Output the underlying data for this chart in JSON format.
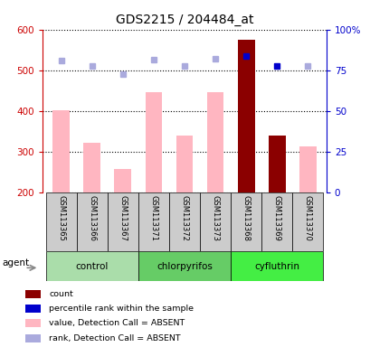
{
  "title": "GDS2215 / 204484_at",
  "samples": [
    "GSM113365",
    "GSM113366",
    "GSM113367",
    "GSM113371",
    "GSM113372",
    "GSM113373",
    "GSM113368",
    "GSM113369",
    "GSM113370"
  ],
  "groups": [
    {
      "label": "control",
      "color": "#AADDAA",
      "indices": [
        0,
        1,
        2
      ]
    },
    {
      "label": "chlorpyrifos",
      "color": "#66CC66",
      "indices": [
        3,
        4,
        5
      ]
    },
    {
      "label": "cyfluthrin",
      "color": "#44EE44",
      "indices": [
        6,
        7,
        8
      ]
    }
  ],
  "bar_values": [
    401,
    323,
    257,
    447,
    339,
    447,
    575,
    339,
    314
  ],
  "bar_colors": [
    "#FFB6C1",
    "#FFB6C1",
    "#FFB6C1",
    "#FFB6C1",
    "#FFB6C1",
    "#FFB6C1",
    "#8B0000",
    "#8B0000",
    "#FFB6C1"
  ],
  "rank_values": [
    524,
    510,
    490,
    527,
    510,
    528,
    536,
    510,
    510
  ],
  "rank_colors": [
    "#AAAADD",
    "#AAAADD",
    "#AAAADD",
    "#AAAADD",
    "#AAAADD",
    "#AAAADD",
    "#0000CC",
    "#0000CC",
    "#AAAADD"
  ],
  "ylim_left": [
    200,
    600
  ],
  "ylim_right": [
    0,
    100
  ],
  "yticks_left": [
    200,
    300,
    400,
    500,
    600
  ],
  "ytick_right_labels": [
    "0",
    "25",
    "50",
    "75",
    "100%"
  ],
  "ytick_right_vals": [
    0,
    25,
    50,
    75,
    100
  ],
  "left_tick_color": "#CC0000",
  "right_tick_color": "#0000CC",
  "sample_box_color": "#CCCCCC",
  "legend_items": [
    {
      "color": "#8B0000",
      "label": "count"
    },
    {
      "color": "#0000CC",
      "label": "percentile rank within the sample"
    },
    {
      "color": "#FFB6C1",
      "label": "value, Detection Call = ABSENT"
    },
    {
      "color": "#AAAADD",
      "label": "rank, Detection Call = ABSENT"
    }
  ],
  "agent_label": "agent",
  "bar_bottom": 200
}
